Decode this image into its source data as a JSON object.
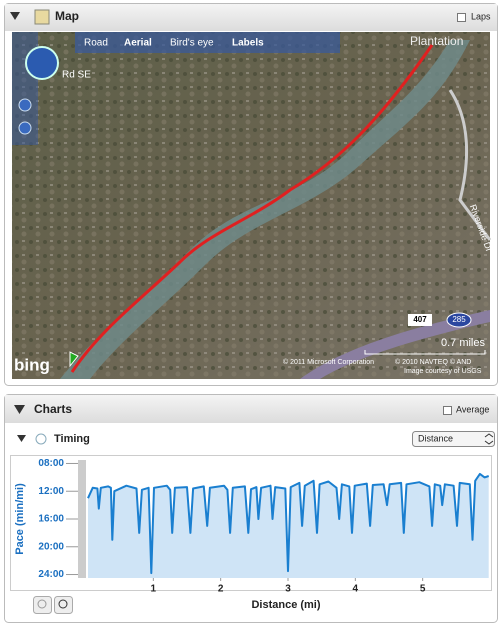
{
  "map": {
    "title": "Map",
    "laps_label": "Laps",
    "map_types": [
      "Road",
      "Aerial",
      "Bird's eye",
      "Labels"
    ],
    "places": [
      "Plantation",
      "Rd SE",
      "Riverside Dr"
    ],
    "shields": [
      "407",
      "285"
    ],
    "scale_label": "0.7 miles",
    "logo": "bing",
    "copyright": "© 2011 Microsoft Corporation",
    "copyright2": "© 2010 NAVTEQ © AND",
    "imagery": "Image courtesy of USGS"
  },
  "charts": {
    "title": "Charts",
    "average_label": "Average",
    "section_title": "Timing",
    "dropdown": "Distance"
  },
  "chart_data": {
    "type": "line",
    "x_label": "Distance (mi)",
    "y_label": "Pace (min/mi)",
    "color": "#1a7fd0",
    "fill_color": "#cfe4f6",
    "y_inverted": true,
    "xlim": [
      0,
      6
    ],
    "xticks": [
      1,
      2,
      3,
      4,
      5
    ],
    "ylim": [
      7.5,
      24.5
    ],
    "yticks": [
      {
        "value": 8,
        "label": "08:00"
      },
      {
        "value": 12,
        "label": "12:00"
      },
      {
        "value": 16,
        "label": "16:00"
      },
      {
        "value": 20,
        "label": "20:00"
      },
      {
        "value": 24,
        "label": "24:00"
      }
    ],
    "grid": false,
    "x": [
      0.03,
      0.1,
      0.17,
      0.19,
      0.22,
      0.33,
      0.37,
      0.39,
      0.42,
      0.6,
      0.75,
      0.79,
      0.83,
      0.93,
      0.97,
      1.01,
      1.2,
      1.25,
      1.28,
      1.32,
      1.5,
      1.55,
      1.59,
      1.75,
      1.8,
      1.84,
      2.05,
      2.1,
      2.14,
      2.18,
      2.36,
      2.41,
      2.45,
      2.53,
      2.56,
      2.6,
      2.74,
      2.77,
      2.81,
      2.96,
      3.0,
      3.04,
      3.17,
      3.21,
      3.25,
      3.38,
      3.43,
      3.47,
      3.6,
      3.72,
      3.76,
      3.8,
      3.91,
      3.95,
      3.99,
      4.17,
      4.22,
      4.26,
      4.42,
      4.47,
      4.51,
      4.68,
      4.72,
      4.76,
      4.95,
      5.1,
      5.14,
      5.18,
      5.26,
      5.29,
      5.33,
      5.46,
      5.51,
      5.55,
      5.7,
      5.74,
      5.78,
      5.85,
      5.92,
      5.98
    ],
    "values": [
      13,
      11.5,
      11.6,
      14.5,
      11.5,
      11.3,
      11.5,
      19,
      12,
      11.2,
      11.6,
      18,
      11.8,
      11.5,
      23.8,
      11.5,
      11.2,
      11.8,
      18,
      11.5,
      11.4,
      18,
      11.6,
      11.3,
      17,
      11.5,
      11.2,
      11.8,
      18,
      11.5,
      11.3,
      18,
      11.7,
      11.4,
      16,
      11.5,
      11.2,
      16,
      11.4,
      11.6,
      23.5,
      11.4,
      10.8,
      17,
      11.2,
      10.5,
      18,
      11,
      10.6,
      11.5,
      16,
      11,
      11.3,
      18,
      11.2,
      10.9,
      17,
      11.1,
      11,
      14,
      11,
      10.8,
      18,
      11,
      10.7,
      11.3,
      17,
      11,
      11.2,
      14,
      11,
      11.2,
      17,
      10.8,
      11,
      19,
      10.5,
      9.5,
      10,
      9.8
    ]
  }
}
